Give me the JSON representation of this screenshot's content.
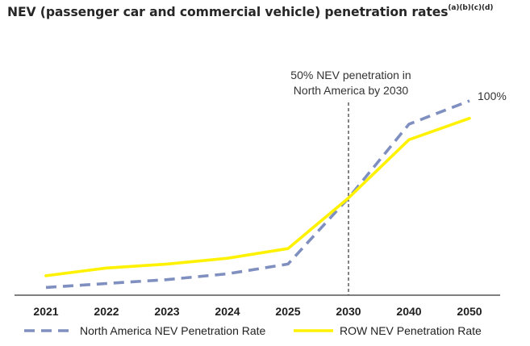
{
  "chart_data": {
    "type": "line",
    "title": "NEV (passenger car and commercial vehicle) penetration rates",
    "title_superscript": "(a)(b)(c)(d)",
    "categories": [
      "2021",
      "2022",
      "2023",
      "2024",
      "2025",
      "2030",
      "2040",
      "2050"
    ],
    "series": [
      {
        "name": "North America NEV Penetration Rate",
        "values": [
          4,
          6,
          8,
          11,
          16,
          50,
          88,
          100
        ],
        "color": "#7f8fbf",
        "style": "dashed"
      },
      {
        "name": "ROW NEV Penetration Rate",
        "values": [
          10,
          14,
          16,
          19,
          24,
          50,
          80,
          91
        ],
        "color": "#fff200",
        "style": "solid"
      }
    ],
    "ylim": [
      0,
      100
    ],
    "xlabel": "",
    "ylabel": "",
    "grid": false,
    "legend": "bottom",
    "annotations": {
      "vline_category": "2030",
      "vline_text_line1": "50% NEV penetration in",
      "vline_text_line2": "North America by 2030",
      "end_label": "100%"
    }
  }
}
